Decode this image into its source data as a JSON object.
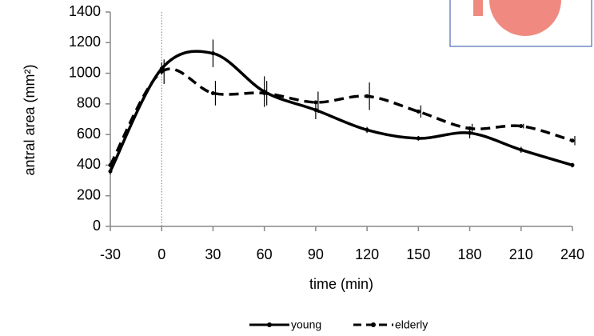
{
  "chart_data": {
    "type": "line",
    "x_label": "time (min)",
    "y_label": "antral area (mm²)",
    "x": [
      -30,
      0,
      30,
      60,
      90,
      120,
      150,
      180,
      210,
      240
    ],
    "series": [
      {
        "name": "young",
        "color": "#000000",
        "dash": false,
        "values": [
          360,
          1030,
          1130,
          880,
          760,
          630,
          575,
          610,
          500,
          400
        ],
        "errors": [
          20,
          40,
          90,
          100,
          60,
          20,
          15,
          35,
          20,
          15
        ]
      },
      {
        "name": "elderly",
        "color": "#000000",
        "dash": true,
        "values": [
          400,
          1010,
          870,
          870,
          810,
          850,
          750,
          640,
          655,
          560
        ],
        "errors": [
          20,
          80,
          80,
          80,
          70,
          90,
          40,
          30,
          15,
          30
        ]
      }
    ],
    "xlim": [
      -30,
      240
    ],
    "xticks": [
      -30,
      0,
      30,
      60,
      90,
      120,
      150,
      180,
      210,
      240
    ],
    "ylim": [
      0,
      1400
    ],
    "yticks": [
      0,
      200,
      400,
      600,
      800,
      1000,
      1200,
      1400
    ],
    "legend": "bottom"
  }
}
